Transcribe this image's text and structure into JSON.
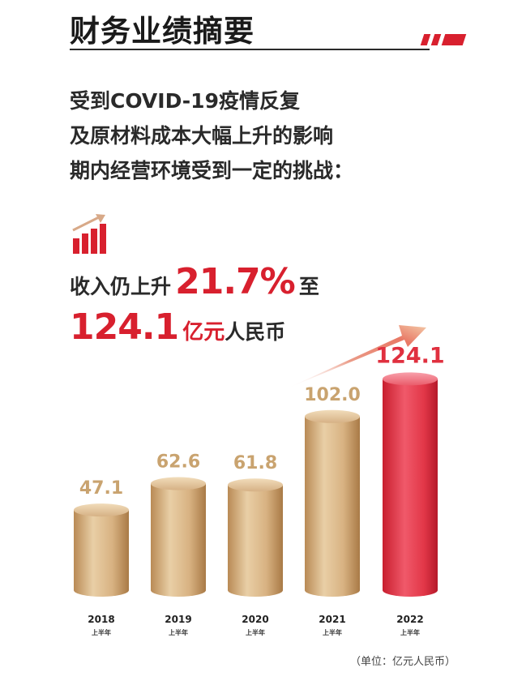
{
  "header": {
    "title": "财务业绩摘要",
    "accent_color": "#d8202e"
  },
  "intro": {
    "lines": [
      "受到COVID-19疫情反复",
      "及原材料成本大幅上升的影响",
      "期内经营环境受到一定的挑战："
    ]
  },
  "highlight": {
    "icon": "growth-bar-chart-icon",
    "line1_prefix": "收入仍上升",
    "growth_value": "21.7%",
    "line1_suffix": "至",
    "revenue_value": "124.1",
    "revenue_unit_red": "亿元",
    "revenue_unit_dark": "人民币"
  },
  "chart_data": {
    "type": "bar",
    "categories": [
      "2018",
      "2019",
      "2020",
      "2021",
      "2022"
    ],
    "sublabels": [
      "上半年",
      "上半年",
      "上半年",
      "上半年",
      "上半年"
    ],
    "values": [
      47.1,
      62.6,
      61.8,
      102.0,
      124.1
    ],
    "value_labels": [
      "47.1",
      "62.6",
      "61.8",
      "102.0",
      "124.1"
    ],
    "unit_note": "（单位：亿元人民币）",
    "colors": {
      "gold": "#c9a36f",
      "highlight": "#e0303f"
    },
    "highlight_index": 4
  }
}
